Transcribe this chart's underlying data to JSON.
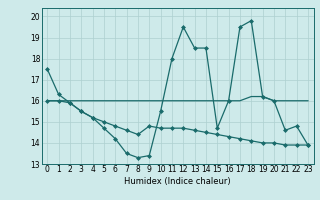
{
  "title": "",
  "xlabel": "Humidex (Indice chaleur)",
  "xlim": [
    -0.5,
    23.5
  ],
  "ylim": [
    13,
    20.4
  ],
  "yticks": [
    13,
    14,
    15,
    16,
    17,
    18,
    19,
    20
  ],
  "xticks": [
    0,
    1,
    2,
    3,
    4,
    5,
    6,
    7,
    8,
    9,
    10,
    11,
    12,
    13,
    14,
    15,
    16,
    17,
    18,
    19,
    20,
    21,
    22,
    23
  ],
  "bg_color": "#ceeaea",
  "line_color": "#1a6b6b",
  "grid_color": "#add0d0",
  "line1_x": [
    0,
    1,
    2,
    3,
    4,
    5,
    6,
    7,
    8,
    9,
    10,
    11,
    12,
    13,
    14,
    15,
    16,
    17,
    18,
    19,
    20,
    21,
    22,
    23
  ],
  "line1_y": [
    17.5,
    16.3,
    15.9,
    15.5,
    15.2,
    14.7,
    14.2,
    13.5,
    13.3,
    13.4,
    15.5,
    18.0,
    19.5,
    18.5,
    18.5,
    14.7,
    16.0,
    19.5,
    19.8,
    16.2,
    16.0,
    14.6,
    14.8,
    13.9
  ],
  "line2_x": [
    0,
    1,
    2,
    3,
    4,
    5,
    6,
    7,
    8,
    9,
    10,
    11,
    12,
    13,
    14,
    15,
    16,
    17,
    18,
    19,
    20,
    21,
    22,
    23
  ],
  "line2_y": [
    16.0,
    16.0,
    16.0,
    16.0,
    16.0,
    16.0,
    16.0,
    16.0,
    16.0,
    16.0,
    16.0,
    16.0,
    16.0,
    16.0,
    16.0,
    16.0,
    16.0,
    16.0,
    16.2,
    16.2,
    16.0,
    16.0,
    16.0,
    16.0
  ],
  "line3_x": [
    0,
    1,
    2,
    3,
    4,
    5,
    6,
    7,
    8,
    9,
    10,
    11,
    12,
    13,
    14,
    15,
    16,
    17,
    18,
    19,
    20,
    21,
    22,
    23
  ],
  "line3_y": [
    16.0,
    16.0,
    15.9,
    15.5,
    15.2,
    15.0,
    14.8,
    14.6,
    14.4,
    14.8,
    14.7,
    14.7,
    14.7,
    14.6,
    14.5,
    14.4,
    14.3,
    14.2,
    14.1,
    14.0,
    14.0,
    13.9,
    13.9,
    13.9
  ]
}
